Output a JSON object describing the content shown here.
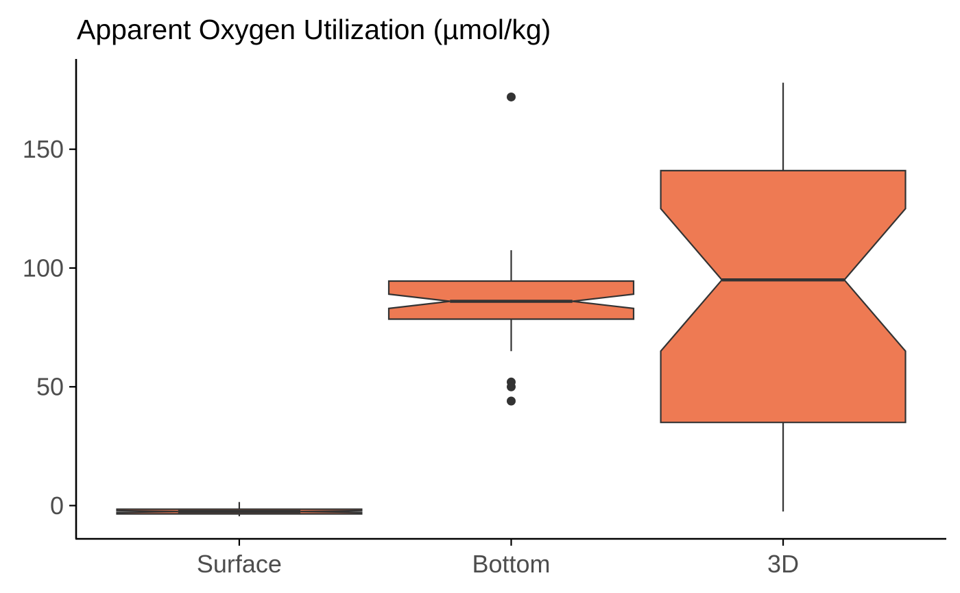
{
  "chart_data": {
    "type": "boxplot",
    "title": "Apparent Oxygen Utilization (µmol/kg)",
    "xlabel": "",
    "ylabel": "",
    "categories": [
      "Surface",
      "Bottom",
      "3D"
    ],
    "ylim": [
      -14,
      188
    ],
    "yticks": [
      0,
      50,
      100,
      150
    ],
    "notched": true,
    "fill_color": "#EE7A53",
    "line_color": "#333333",
    "grid": false,
    "boxes": [
      {
        "category": "Surface",
        "min": -4.5,
        "q1": -3.5,
        "notch_low": -2.9,
        "median": -2.5,
        "notch_high": -2.1,
        "q3": -1.5,
        "max": 1.5,
        "outliers": []
      },
      {
        "category": "Bottom",
        "min": 65,
        "q1": 78.5,
        "notch_low": 83,
        "median": 86,
        "notch_high": 89,
        "q3": 94.5,
        "max": 107.5,
        "outliers": [
          172,
          52,
          50,
          44
        ]
      },
      {
        "category": "3D",
        "min": -2.5,
        "q1": 35,
        "notch_low": 65,
        "median": 95,
        "notch_high": 125,
        "q3": 141,
        "max": 178,
        "outliers": []
      }
    ]
  }
}
